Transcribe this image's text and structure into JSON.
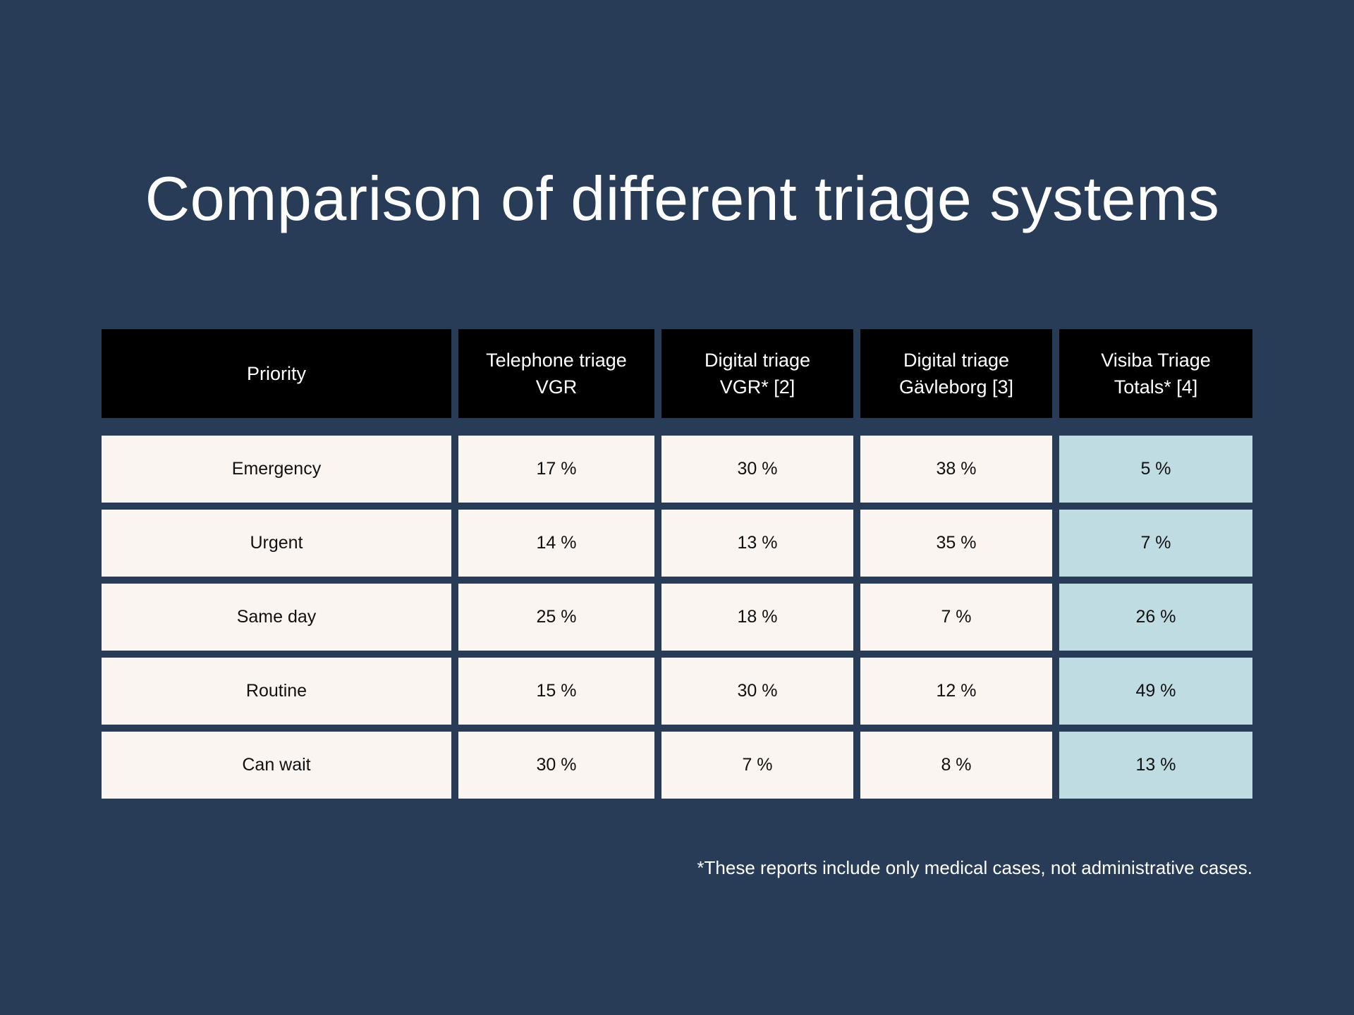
{
  "title": "Comparison of different triage systems",
  "footnote": "*These reports include only medical cases, not administrative cases.",
  "colors": {
    "background": "#283c57",
    "header_bg": "#000000",
    "cell_bg": "#fbf5f1",
    "highlight_bg": "#bedce2"
  },
  "chart_data": {
    "type": "table",
    "title": "Comparison of different triage systems",
    "columns": [
      {
        "line1": "Priority",
        "line2": ""
      },
      {
        "line1": "Telephone triage",
        "line2": "VGR"
      },
      {
        "line1": "Digital triage",
        "line2": "VGR* [2]"
      },
      {
        "line1": "Digital triage",
        "line2": "Gävleborg [3]"
      },
      {
        "line1": "Visiba Triage",
        "line2": "Totals* [4]"
      }
    ],
    "rows": [
      [
        "Emergency",
        "17 %",
        "30 %",
        "38 %",
        "5 %"
      ],
      [
        "Urgent",
        "14 %",
        "13 %",
        "35 %",
        "7 %"
      ],
      [
        "Same day",
        "25 %",
        "18 %",
        "7 %",
        "26 %"
      ],
      [
        "Routine",
        "15 %",
        "30 %",
        "12 %",
        "49 %"
      ],
      [
        "Can wait",
        "30 %",
        "7 %",
        "8 %",
        "13 %"
      ]
    ],
    "highlighted_column": 4
  }
}
